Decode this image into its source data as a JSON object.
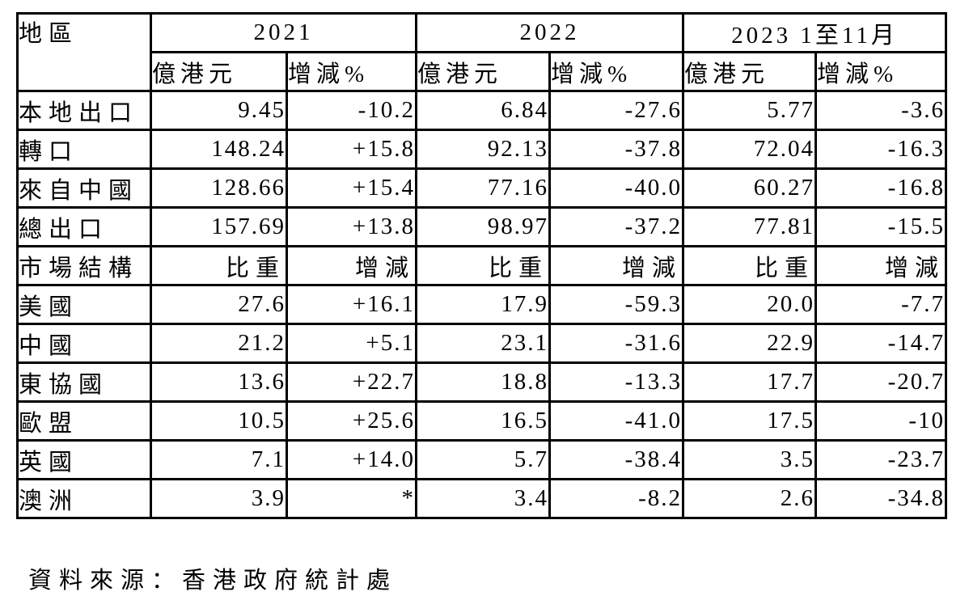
{
  "table": {
    "corner_label": "地區",
    "year_headers": [
      "2021",
      "2022",
      "2023 1至11月"
    ],
    "sub_headers": [
      "億港元",
      "增減%",
      "億港元",
      "增減%",
      "億港元",
      "增減%"
    ],
    "rows": [
      {
        "label": "本地出口",
        "section": false,
        "values": [
          "9.45",
          "-10.2",
          "6.84",
          "-27.6",
          "5.77",
          "-3.6"
        ]
      },
      {
        "label": "轉口",
        "section": false,
        "values": [
          "148.24",
          "+15.8",
          "92.13",
          "-37.8",
          "72.04",
          "-16.3"
        ]
      },
      {
        "label": "來自中國",
        "section": false,
        "values": [
          "128.66",
          "+15.4",
          "77.16",
          "-40.0",
          "60.27",
          "-16.8"
        ]
      },
      {
        "label": "總出口",
        "section": false,
        "values": [
          "157.69",
          "+13.8",
          "98.97",
          "-37.2",
          "77.81",
          "-15.5"
        ]
      },
      {
        "label": "市場結構",
        "section": true,
        "values": [
          "比重",
          "增減",
          "比重",
          "增減",
          "比重",
          "增減"
        ]
      },
      {
        "label": "美國",
        "section": false,
        "values": [
          "27.6",
          "+16.1",
          "17.9",
          "-59.3",
          "20.0",
          "-7.7"
        ]
      },
      {
        "label": "中國",
        "section": false,
        "values": [
          "21.2",
          "+5.1",
          "23.1",
          "-31.6",
          "22.9",
          "-14.7"
        ]
      },
      {
        "label": "東協國",
        "section": false,
        "values": [
          "13.6",
          "+22.7",
          "18.8",
          "-13.3",
          "17.7",
          "-20.7"
        ]
      },
      {
        "label": "歐盟",
        "section": false,
        "values": [
          "10.5",
          "+25.6",
          "16.5",
          "-41.0",
          "17.5",
          "-10"
        ]
      },
      {
        "label": "英國",
        "section": false,
        "values": [
          "7.1",
          "+14.0",
          "5.7",
          "-38.4",
          "3.5",
          "-23.7"
        ]
      },
      {
        "label": "澳洲",
        "section": false,
        "values": [
          "3.9",
          "*",
          "3.4",
          "-8.2",
          "2.6",
          "-34.8"
        ]
      }
    ],
    "source_note": "資料來源：香港政府統計處"
  }
}
